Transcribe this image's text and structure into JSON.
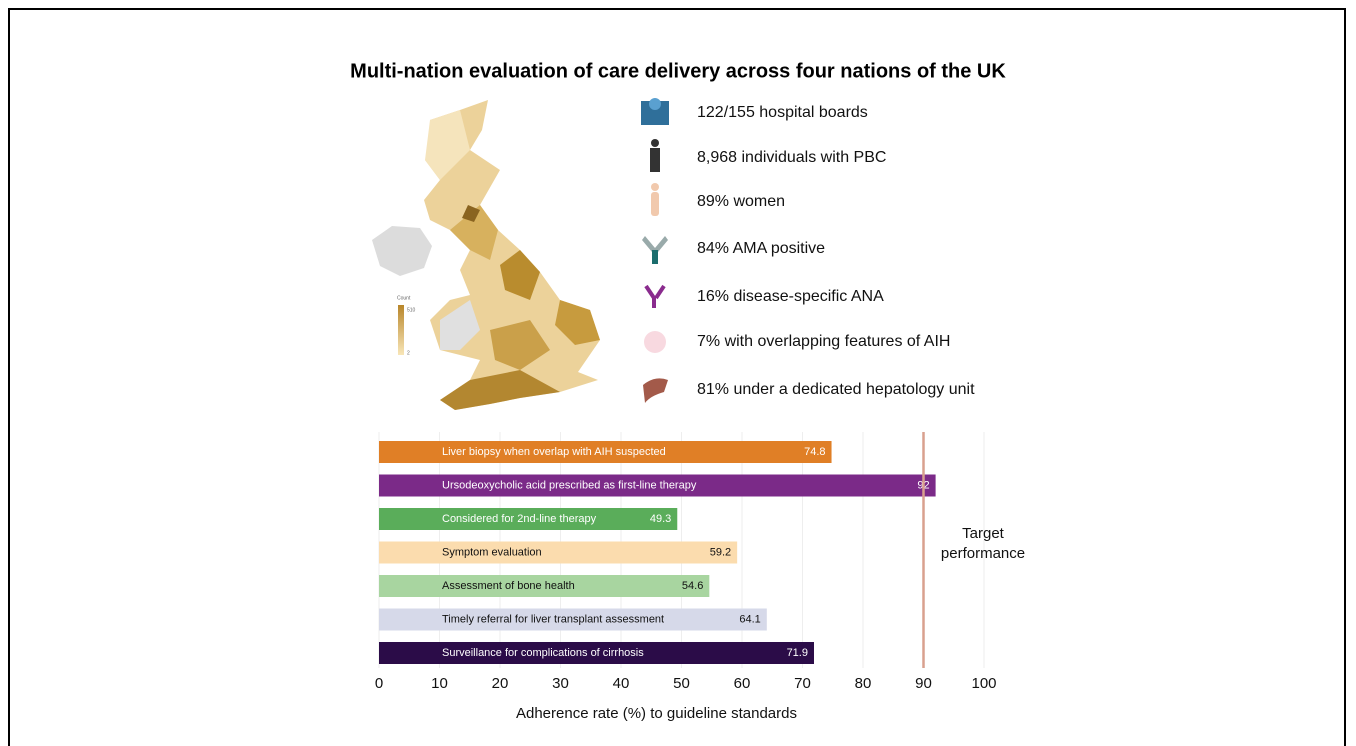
{
  "title": "Multi-nation evaluation of care delivery across four nations of the UK",
  "map_legend": {
    "title": "Count",
    "max": "510",
    "min": "2"
  },
  "stats": [
    "122/155 hospital boards",
    "8,968 individuals with PBC",
    "89% women",
    "84% AMA positive",
    "16% disease-specific ANA",
    "7% with overlapping features of AIH",
    "81% under a dedicated hepatology unit"
  ],
  "chart_data": {
    "type": "hbar",
    "categories": [
      "Liver biopsy when overlap with AIH suspected",
      "Ursodeoxycholic acid prescribed as first-line therapy",
      "Considered for 2nd-line therapy",
      "Symptom evaluation",
      "Assessment of bone health",
      "Timely referral for liver transplant assessment",
      "Surveillance for complications of cirrhosis"
    ],
    "values": [
      74.8,
      92,
      49.3,
      59.2,
      54.6,
      64.1,
      71.9
    ],
    "colors": [
      "#e07f26",
      "#7b2a88",
      "#5aad5a",
      "#fbdcae",
      "#a8d5a0",
      "#d6d9e9",
      "#2b0c48"
    ],
    "label_colors": [
      "#ffffff",
      "#ffffff",
      "#ffffff",
      "#111111",
      "#111111",
      "#111111",
      "#ffffff"
    ],
    "xlim": [
      0,
      100
    ],
    "xticks": [
      0,
      10,
      20,
      30,
      40,
      50,
      60,
      70,
      80,
      90,
      100
    ],
    "xlabel": "Adherence rate (%) to guideline standards",
    "target": 90,
    "target_label": "Target performance",
    "grid": true
  }
}
